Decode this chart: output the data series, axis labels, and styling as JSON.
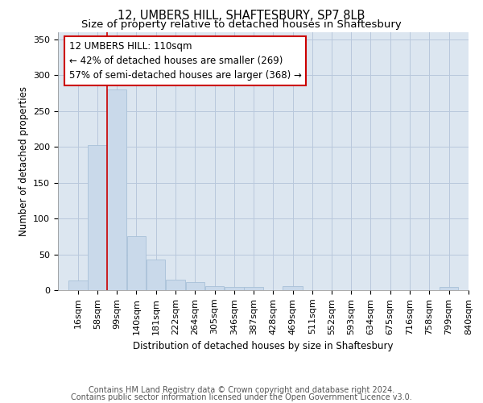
{
  "title": "12, UMBERS HILL, SHAFTESBURY, SP7 8LB",
  "subtitle": "Size of property relative to detached houses in Shaftesbury",
  "xlabel": "Distribution of detached houses by size in Shaftesbury",
  "ylabel": "Number of detached properties",
  "footer_line1": "Contains HM Land Registry data © Crown copyright and database right 2024.",
  "footer_line2": "Contains public sector information licensed under the Open Government Licence v3.0.",
  "annotation_line1": "12 UMBERS HILL: 110sqm",
  "annotation_line2": "← 42% of detached houses are smaller (269)",
  "annotation_line3": "57% of semi-detached houses are larger (368) →",
  "bar_bins": [
    16,
    58,
    99,
    140,
    181,
    222,
    264,
    305,
    346,
    387,
    428,
    469,
    511,
    552,
    593,
    634,
    675,
    716,
    758,
    799,
    840
  ],
  "bar_heights": [
    13,
    202,
    280,
    75,
    43,
    15,
    11,
    6,
    5,
    5,
    0,
    6,
    0,
    0,
    0,
    0,
    0,
    0,
    0,
    5
  ],
  "bar_color": "#c9d9ea",
  "bar_edge_color": "#a8c0d8",
  "vline_color": "#cc0000",
  "vline_x": 99,
  "annotation_box_color": "#cc0000",
  "grid_color": "#b8c8dc",
  "bg_color": "#dce6f0",
  "ylim": [
    0,
    360
  ],
  "yticks": [
    0,
    50,
    100,
    150,
    200,
    250,
    300,
    350
  ],
  "title_fontsize": 10.5,
  "subtitle_fontsize": 9.5,
  "tick_labels": [
    "16sqm",
    "58sqm",
    "99sqm",
    "140sqm",
    "181sqm",
    "222sqm",
    "264sqm",
    "305sqm",
    "346sqm",
    "387sqm",
    "428sqm",
    "469sqm",
    "511sqm",
    "552sqm",
    "593sqm",
    "634sqm",
    "675sqm",
    "716sqm",
    "758sqm",
    "799sqm",
    "840sqm"
  ],
  "annotation_fontsize": 8.5,
  "axis_label_fontsize": 8.5,
  "tick_fontsize": 8,
  "footer_fontsize": 7
}
